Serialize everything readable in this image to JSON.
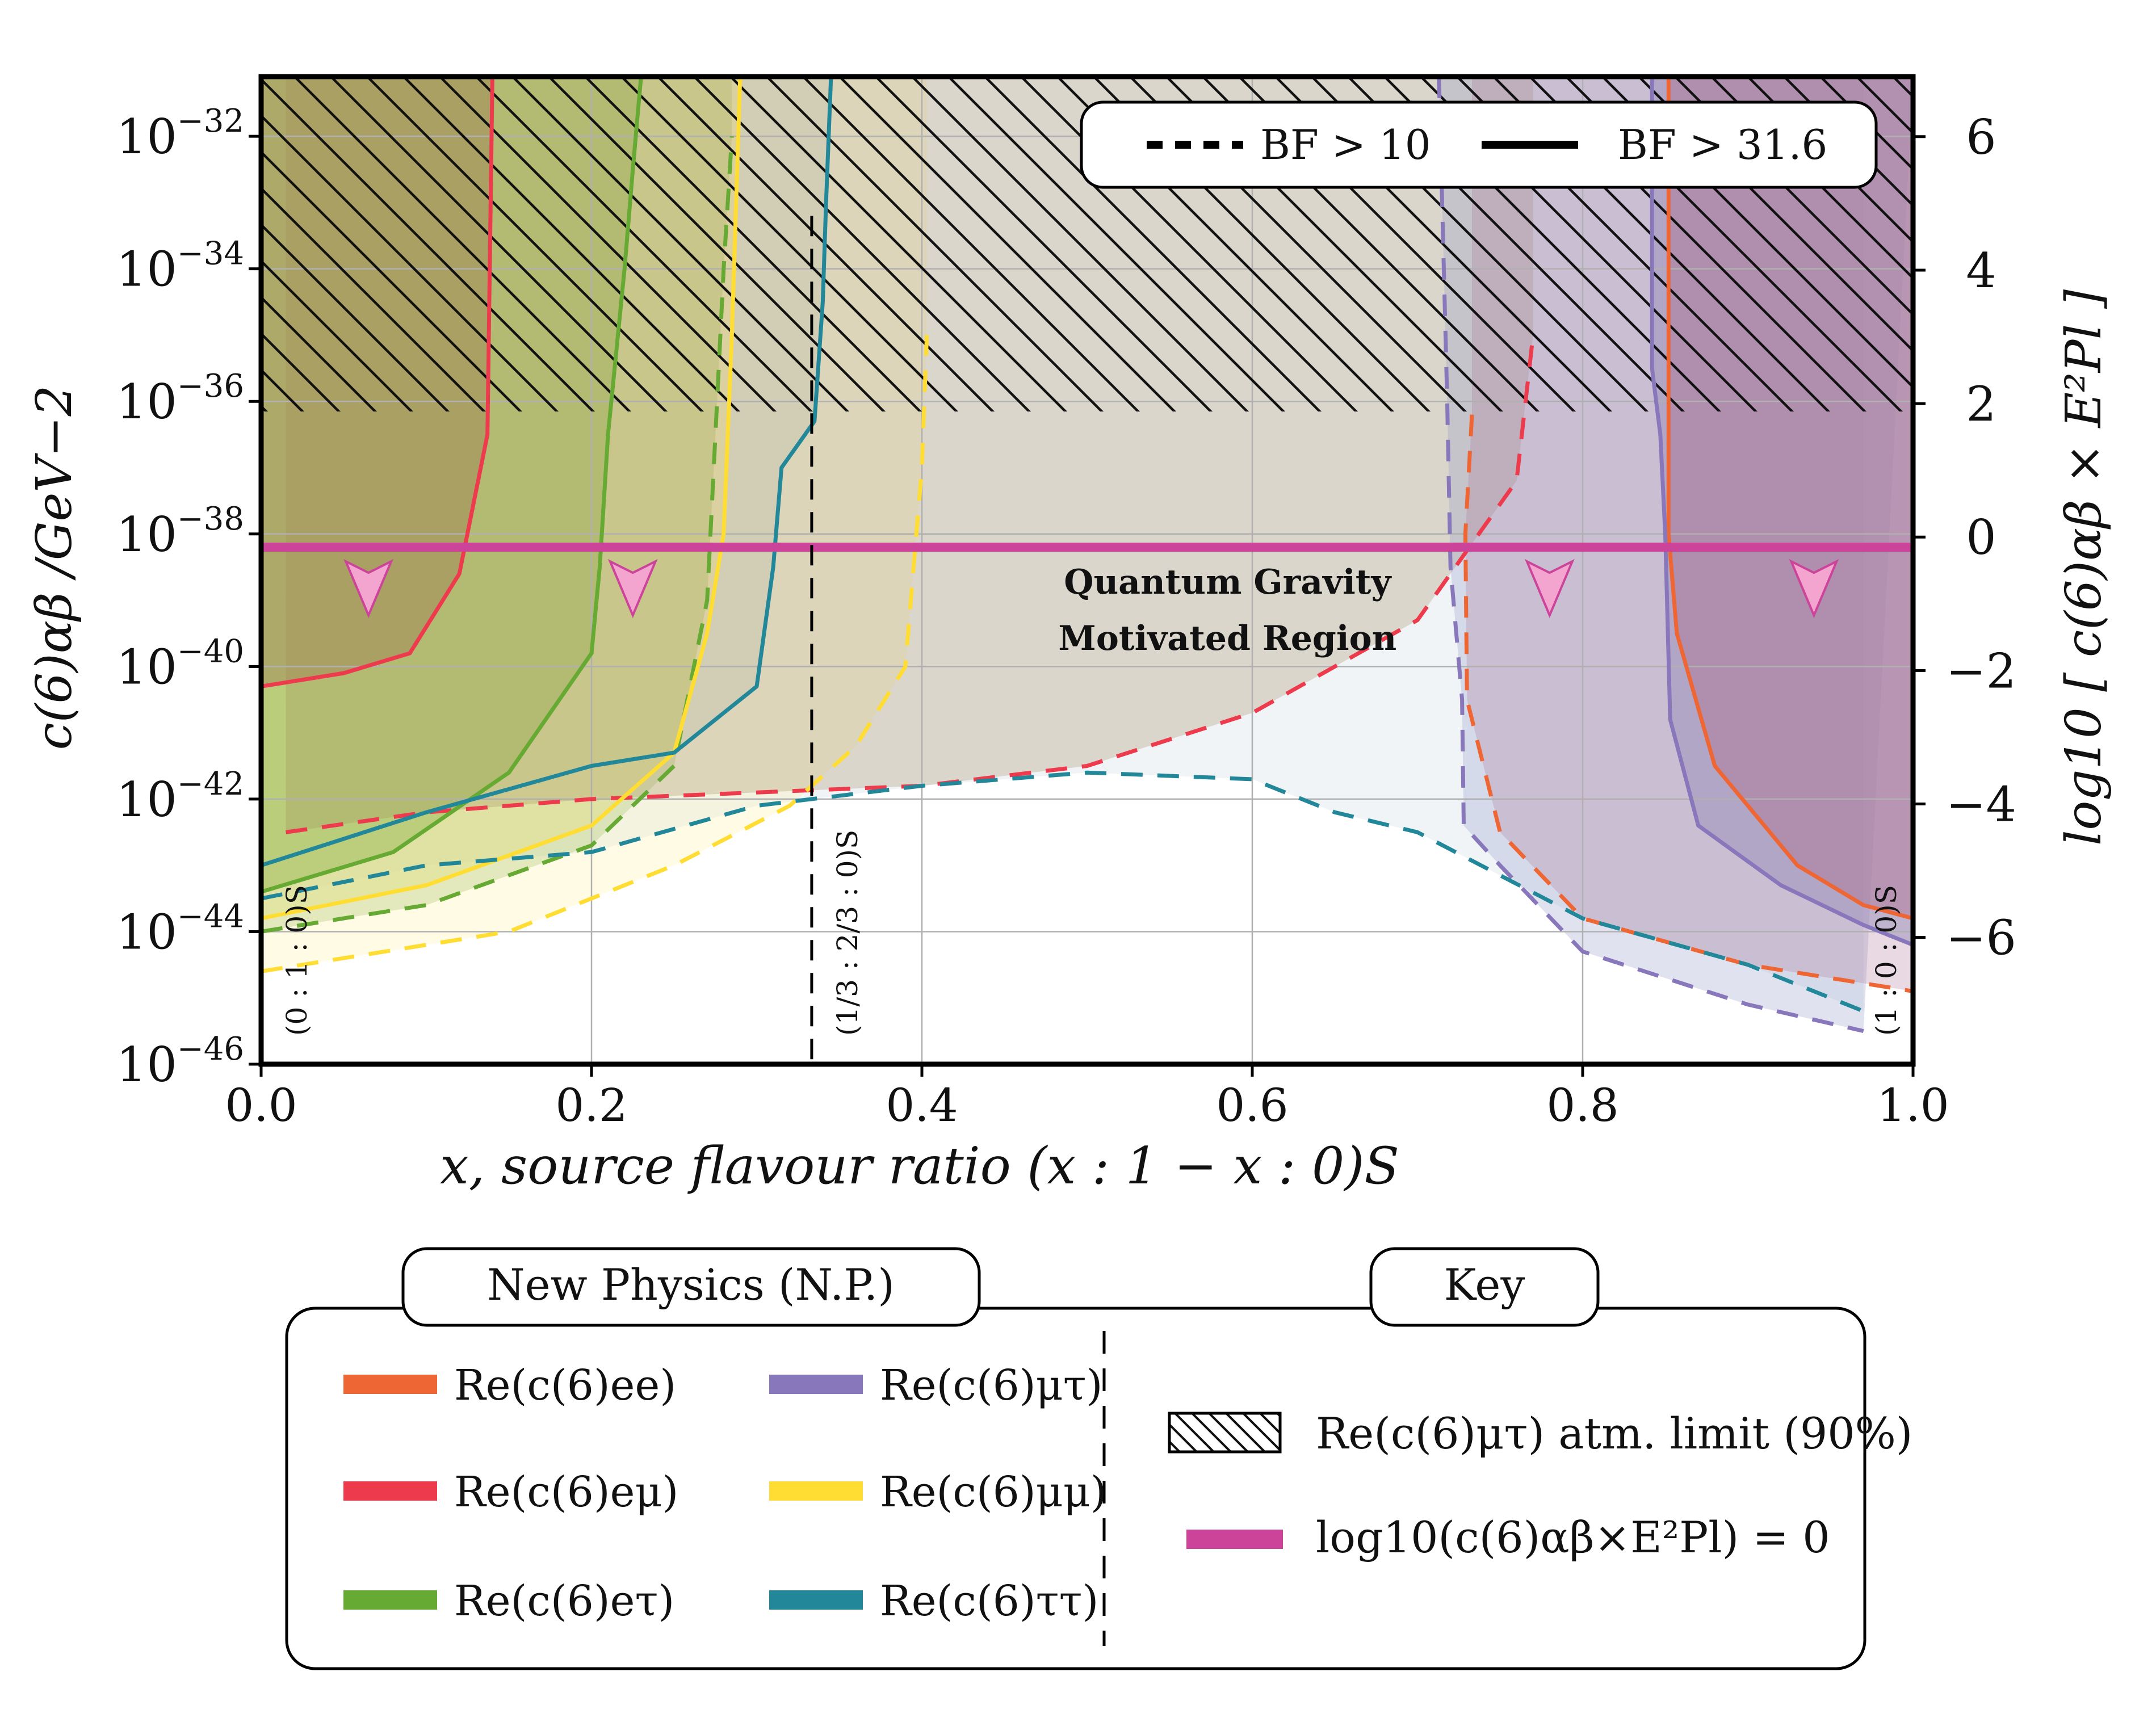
{
  "chart_data": {
    "type": "line",
    "title": "",
    "xlabel": "x, source flavour ratio (x : 1 − x : 0)S",
    "ylabel_left": "c(6)αβ /GeV−2",
    "ylabel_right": "log10 [ c(6)αβ × E²Pl ]",
    "xlim": [
      0.0,
      1.0
    ],
    "ylim_log10": [
      -46,
      -31.1
    ],
    "ylim_right": [
      -7.9,
      6.9
    ],
    "x_ticks": [
      {
        "value": 0.0,
        "label": "0.0"
      },
      {
        "value": 0.2,
        "label": "0.2"
      },
      {
        "value": 0.4,
        "label": "0.4"
      },
      {
        "value": 0.6,
        "label": "0.6"
      },
      {
        "value": 0.8,
        "label": "0.8"
      },
      {
        "value": 1.0,
        "label": "1.0"
      }
    ],
    "y_ticks_left": [
      {
        "value": -32,
        "base": "10",
        "exp": "−32"
      },
      {
        "value": -34,
        "base": "10",
        "exp": "−34"
      },
      {
        "value": -36,
        "base": "10",
        "exp": "−36"
      },
      {
        "value": -38,
        "base": "10",
        "exp": "−38"
      },
      {
        "value": -40,
        "base": "10",
        "exp": "−40"
      },
      {
        "value": -42,
        "base": "10",
        "exp": "−42"
      },
      {
        "value": -44,
        "base": "10",
        "exp": "−44"
      },
      {
        "value": -46,
        "base": "10",
        "exp": "−46"
      }
    ],
    "y_ticks_right": [
      {
        "value": 6,
        "label": "6"
      },
      {
        "value": 4,
        "label": "4"
      },
      {
        "value": 2,
        "label": "2"
      },
      {
        "value": 0,
        "label": "0"
      },
      {
        "value": -2,
        "label": "−2"
      },
      {
        "value": -4,
        "label": "−4"
      },
      {
        "value": -6,
        "label": "−6"
      }
    ],
    "qg_line_log10": -38.2,
    "qg_label": [
      "Quantum Gravity",
      "Motivated Region"
    ],
    "atm_limit_log10": -36.2,
    "vlines": [
      {
        "x": 0.0,
        "label": "(0 : 1 : 0)S"
      },
      {
        "x": 0.3333,
        "label": "(1/3 : 2/3 : 0)S"
      },
      {
        "x": 1.0,
        "label": "(1 : 0 : 0)S"
      }
    ],
    "arrow_x": [
      0.065,
      0.225,
      0.78,
      0.94
    ],
    "series": [
      {
        "name": "Re(c(6)ee)",
        "color": "#EE6633",
        "fill": "#B07898",
        "side": "right",
        "solid": [
          [
            0.852,
            -31.1
          ],
          [
            0.852,
            -38
          ],
          [
            0.857,
            -39.5
          ],
          [
            0.88,
            -41.5
          ],
          [
            0.93,
            -43
          ],
          [
            0.97,
            -43.6
          ],
          [
            1.0,
            -43.8
          ]
        ],
        "dashed": [
          [
            0.733,
            -36.2
          ],
          [
            0.729,
            -38
          ],
          [
            0.73,
            -40.5
          ],
          [
            0.75,
            -42.5
          ],
          [
            0.8,
            -43.8
          ],
          [
            0.9,
            -44.5
          ],
          [
            1.0,
            -44.9
          ]
        ]
      },
      {
        "name": "Re(c(6)eμ)",
        "color": "#EE3A4D",
        "fill": "#A08858",
        "side": "left",
        "solid": [
          [
            0.0,
            -40.3
          ],
          [
            0.05,
            -40.1
          ],
          [
            0.09,
            -39.8
          ],
          [
            0.12,
            -38.6
          ],
          [
            0.137,
            -36.5
          ],
          [
            0.14,
            -31.1
          ]
        ],
        "dashed": [
          [
            0.015,
            -42.5
          ],
          [
            0.1,
            -42.2
          ],
          [
            0.2,
            -42.0
          ],
          [
            0.3,
            -41.9
          ],
          [
            0.4,
            -41.8
          ],
          [
            0.5,
            -41.5
          ],
          [
            0.6,
            -40.7
          ],
          [
            0.7,
            -39.3
          ],
          [
            0.76,
            -37.2
          ],
          [
            0.77,
            -35
          ]
        ]
      },
      {
        "name": "Re(c(6)eτ)",
        "color": "#66AA33",
        "fill": "#9ABB55",
        "side": "left",
        "solid": [
          [
            0.0,
            -43.4
          ],
          [
            0.08,
            -42.8
          ],
          [
            0.15,
            -41.6
          ],
          [
            0.2,
            -39.8
          ],
          [
            0.205,
            -38.5
          ],
          [
            0.21,
            -36.5
          ],
          [
            0.22,
            -34
          ],
          [
            0.225,
            -32.5
          ],
          [
            0.23,
            -31.1
          ]
        ],
        "dashed": [
          [
            0.0,
            -44
          ],
          [
            0.1,
            -43.6
          ],
          [
            0.2,
            -42.7
          ],
          [
            0.25,
            -41.5
          ],
          [
            0.27,
            -39
          ],
          [
            0.275,
            -36.5
          ],
          [
            0.28,
            -34
          ],
          [
            0.285,
            -32
          ]
        ]
      },
      {
        "name": "Re(c(6)μτ)",
        "color": "#8877BB",
        "fill": "#9098C8",
        "side": "right",
        "solid": [
          [
            0.842,
            -31.1
          ],
          [
            0.842,
            -35.5
          ],
          [
            0.847,
            -36.5
          ],
          [
            0.85,
            -38
          ],
          [
            0.853,
            -40.8
          ],
          [
            0.87,
            -42.4
          ],
          [
            0.92,
            -43.3
          ],
          [
            0.97,
            -43.9
          ],
          [
            1.0,
            -44.2
          ]
        ],
        "dashed": [
          [
            0.713,
            -31.1
          ],
          [
            0.718,
            -36
          ],
          [
            0.72,
            -38.5
          ],
          [
            0.727,
            -40.5
          ],
          [
            0.728,
            -42.4
          ],
          [
            0.75,
            -43
          ],
          [
            0.8,
            -44.3
          ],
          [
            0.9,
            -45.1
          ],
          [
            0.97,
            -45.5
          ]
        ]
      },
      {
        "name": "Re(c(6)μμ)",
        "color": "#FFDD33",
        "fill": "#FFF0A0",
        "side": "left",
        "solid": [
          [
            0.0,
            -43.8
          ],
          [
            0.1,
            -43.3
          ],
          [
            0.2,
            -42.4
          ],
          [
            0.25,
            -41.3
          ],
          [
            0.27,
            -39.5
          ],
          [
            0.28,
            -38
          ],
          [
            0.285,
            -35
          ],
          [
            0.29,
            -31.1
          ]
        ],
        "dashed": [
          [
            0.0,
            -44.6
          ],
          [
            0.15,
            -44.0
          ],
          [
            0.25,
            -43.0
          ],
          [
            0.32,
            -42.1
          ],
          [
            0.36,
            -41.2
          ],
          [
            0.39,
            -40
          ],
          [
            0.4,
            -37
          ],
          [
            0.403,
            -35
          ]
        ]
      },
      {
        "name": "Re(c(6)ττ)",
        "color": "#228899",
        "fill": "#C8D8E4",
        "side": "left",
        "solid": [
          [
            0.0,
            -43.0
          ],
          [
            0.1,
            -42.2
          ],
          [
            0.2,
            -41.5
          ],
          [
            0.25,
            -41.3
          ],
          [
            0.3,
            -40.3
          ],
          [
            0.31,
            -38.5
          ],
          [
            0.315,
            -37
          ],
          [
            0.335,
            -36.3
          ],
          [
            0.34,
            -34.5
          ],
          [
            0.342,
            -33
          ],
          [
            0.345,
            -31.1
          ]
        ],
        "dashed": [
          [
            0.0,
            -43.5
          ],
          [
            0.1,
            -43.0
          ],
          [
            0.2,
            -42.8
          ],
          [
            0.3,
            -42.1
          ],
          [
            0.4,
            -41.8
          ],
          [
            0.5,
            -41.6
          ],
          [
            0.6,
            -41.7
          ],
          [
            0.65,
            -42.2
          ],
          [
            0.7,
            -42.5
          ],
          [
            0.8,
            -43.8
          ],
          [
            0.9,
            -44.5
          ],
          [
            0.97,
            -45.2
          ]
        ]
      }
    ],
    "legend_lines": [
      {
        "label": "BF > 10",
        "style": "dashed"
      },
      {
        "label": "BF > 31.6",
        "style": "solid"
      }
    ]
  },
  "legend_np": {
    "title": "New Physics (N.P.)",
    "items": [
      {
        "label": "Re(c(6)ee)",
        "color": "#EE6633"
      },
      {
        "label": "Re(c(6)eμ)",
        "color": "#EE3A4D"
      },
      {
        "label": "Re(c(6)eτ)",
        "color": "#66AA33"
      },
      {
        "label": "Re(c(6)μτ)",
        "color": "#8877BB"
      },
      {
        "label": "Re(c(6)μμ)",
        "color": "#FFDD33"
      },
      {
        "label": "Re(c(6)ττ)",
        "color": "#228899"
      }
    ]
  },
  "legend_key": {
    "title": "Key",
    "atm_label": "Re(c(6)μτ) atm. limit (90%)",
    "qg_label": "log10(c(6)αβ×E²Pl) = 0",
    "qg_color": "#CC4499"
  }
}
